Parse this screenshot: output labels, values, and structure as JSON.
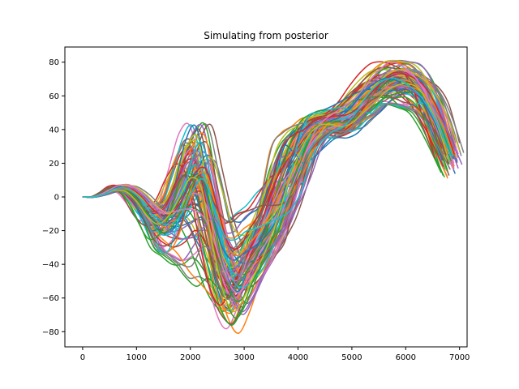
{
  "chart_data": {
    "type": "line",
    "title": "Simulating from posterior",
    "xlabel": "",
    "ylabel": "",
    "xlim": [
      -330,
      7140
    ],
    "ylim": [
      -89,
      89
    ],
    "xticks": [
      0,
      1000,
      2000,
      3000,
      4000,
      5000,
      6000,
      7000
    ],
    "yticks": [
      -80,
      -60,
      -40,
      -20,
      0,
      20,
      40,
      60,
      80
    ],
    "grid": false,
    "legend": "none",
    "colors": [
      "#1f77b4",
      "#ff7f0e",
      "#2ca02c",
      "#d62728",
      "#9467bd",
      "#8c564b",
      "#e377c2",
      "#7f7f7f",
      "#bcbd22",
      "#17becf"
    ],
    "n_series": 100,
    "x": [
      0,
      200,
      400,
      600,
      800,
      1000,
      1200,
      1400,
      1600,
      1800,
      2000,
      2200,
      2400,
      2600,
      2800,
      3000,
      3200,
      3400,
      3600,
      3800,
      4000,
      4200,
      4400,
      4600,
      4800,
      5000,
      5200,
      5400,
      5600,
      5800,
      6000,
      6200,
      6400,
      6600,
      6800
    ],
    "mean_curve": [
      0,
      0,
      2,
      5,
      5,
      0,
      -8,
      -12,
      -10,
      -2,
      8,
      5,
      -20,
      -45,
      -55,
      -45,
      -33,
      -22,
      -8,
      8,
      22,
      35,
      42,
      44,
      45,
      50,
      58,
      65,
      70,
      72,
      70,
      65,
      55,
      40,
      22
    ],
    "envelope_low": [
      -1,
      -1,
      0,
      2,
      1,
      -5,
      -16,
      -30,
      -35,
      -40,
      -48,
      -55,
      -65,
      -75,
      -81,
      -70,
      -55,
      -45,
      -35,
      -25,
      -5,
      20,
      30,
      35,
      35,
      38,
      45,
      50,
      55,
      55,
      53,
      50,
      40,
      25,
      10
    ],
    "envelope_high": [
      0,
      1,
      5,
      8,
      8,
      3,
      -3,
      -5,
      0,
      20,
      38,
      42,
      15,
      -10,
      -15,
      -10,
      -5,
      10,
      30,
      38,
      42,
      48,
      50,
      52,
      55,
      60,
      68,
      75,
      80,
      81,
      80,
      78,
      70,
      55,
      32
    ]
  }
}
